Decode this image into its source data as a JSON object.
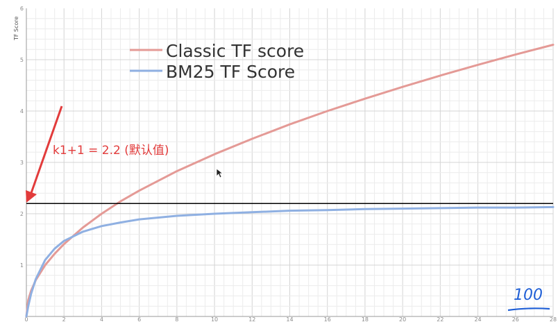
{
  "chart_data": {
    "type": "line",
    "ylabel": "TF Score",
    "xlim": [
      0,
      28
    ],
    "ylim": [
      0,
      6
    ],
    "x_ticks": [
      0,
      2,
      4,
      6,
      8,
      10,
      12,
      14,
      16,
      18,
      20,
      22,
      24,
      26,
      28
    ],
    "y_ticks": [
      1,
      2,
      3,
      4,
      5,
      6
    ],
    "grid": true,
    "legend_position": "top-left",
    "series": [
      {
        "name": "Classic TF score",
        "color": "#e49a96",
        "x": [
          0,
          0.1,
          0.25,
          0.5,
          1,
          1.5,
          2,
          3,
          4,
          5,
          6,
          8,
          10,
          12,
          14,
          16,
          18,
          20,
          22,
          24,
          26,
          28
        ],
        "y": [
          0,
          0.32,
          0.5,
          0.71,
          1.0,
          1.22,
          1.41,
          1.73,
          2.0,
          2.24,
          2.45,
          2.83,
          3.16,
          3.46,
          3.74,
          4.0,
          4.24,
          4.47,
          4.69,
          4.9,
          5.1,
          5.29
        ]
      },
      {
        "name": "BM25 TF Score",
        "color": "#8fb0e2",
        "x": [
          0,
          0.1,
          0.25,
          0.5,
          1,
          1.5,
          2,
          3,
          4,
          5,
          6,
          8,
          10,
          12,
          14,
          16,
          18,
          20,
          22,
          24,
          26,
          28
        ],
        "y": [
          0,
          0.2,
          0.44,
          0.73,
          1.1,
          1.32,
          1.47,
          1.65,
          1.76,
          1.83,
          1.89,
          1.96,
          2.0,
          2.03,
          2.06,
          2.07,
          2.09,
          2.1,
          2.11,
          2.12,
          2.12,
          2.13
        ]
      }
    ],
    "reference_line": {
      "y": 2.2,
      "color": "#000000"
    },
    "annotations": {
      "label": "k1+1 = 2.2 (默认值)",
      "arrow_color": "#e23b3b"
    }
  },
  "handwriting": {
    "text": "100",
    "color": "#1f5fd6"
  }
}
